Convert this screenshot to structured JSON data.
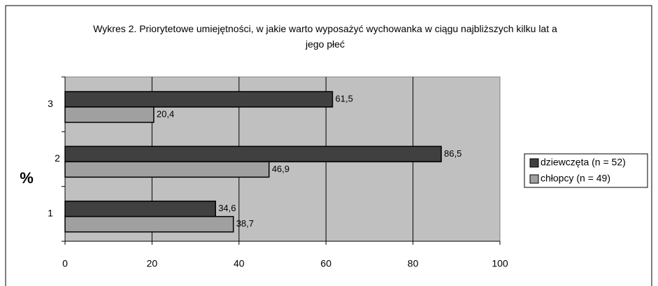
{
  "chart_data": {
    "type": "bar",
    "orientation": "horizontal",
    "title": "Wykres 2. Priorytetowe umiejętności, w jakie warto wyposażyć wychowanka w ciągu najbliższych kilku lat a jego płeć",
    "y_label": "%",
    "categories": [
      "1",
      "2",
      "3"
    ],
    "series": [
      {
        "name": "dziewczęta (n = 52)",
        "color": "#404040",
        "values": [
          34.6,
          86.5,
          61.5
        ],
        "value_labels": [
          "34,6",
          "86,5",
          "61,5"
        ]
      },
      {
        "name": "chłopcy (n = 49)",
        "color": "#a0a0a0",
        "values": [
          38.7,
          46.9,
          20.4
        ],
        "value_labels": [
          "38,7",
          "46,9",
          "20,4"
        ]
      }
    ],
    "xlim": [
      0,
      100
    ],
    "xticks": [
      0,
      20,
      40,
      60,
      80,
      100
    ],
    "grid": true,
    "legend": "right"
  }
}
